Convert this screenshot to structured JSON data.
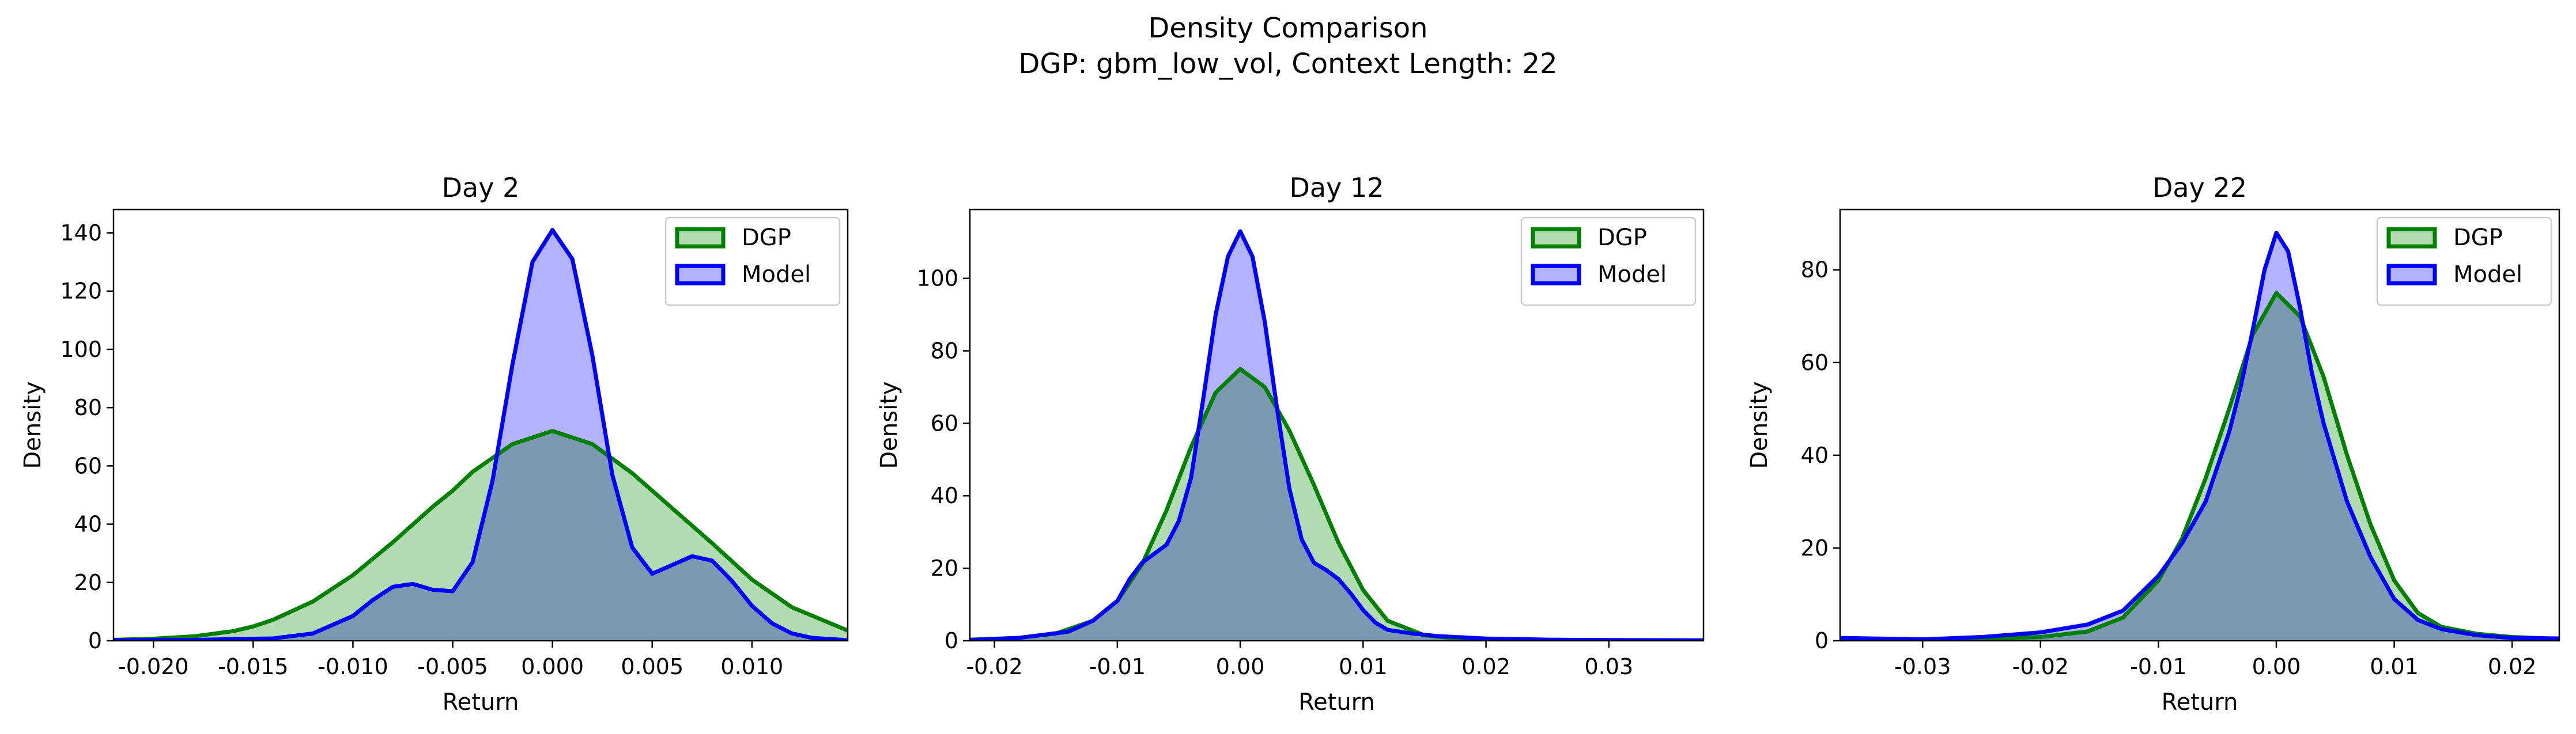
{
  "figure": {
    "title_line1": "Density Comparison",
    "title_line2": "DGP: gbm_low_vol, Context Length: 22"
  },
  "colors": {
    "dgp_line": "#008000",
    "dgp_fill": "#b2dbb2",
    "model_line": "#0000ff",
    "model_fill": "#b2b2ff",
    "overlap_fill": "#7c97c8"
  },
  "chart_data": [
    {
      "type": "area",
      "title": "Day 2",
      "xlabel": "Return",
      "ylabel": "Density",
      "xlim": [
        -0.022,
        0.0148
      ],
      "ylim": [
        0,
        148
      ],
      "xticks": [
        -0.02,
        -0.015,
        -0.01,
        -0.005,
        0.0,
        0.005,
        0.01
      ],
      "xtick_labels": [
        "-0.020",
        "-0.015",
        "-0.010",
        "-0.005",
        "0.000",
        "0.005",
        "0.010"
      ],
      "yticks": [
        0,
        20,
        40,
        60,
        80,
        100,
        120,
        140
      ],
      "legend": "top-right",
      "series": [
        {
          "name": "DGP",
          "x": [
            -0.022,
            -0.02,
            -0.018,
            -0.016,
            -0.015,
            -0.014,
            -0.012,
            -0.01,
            -0.008,
            -0.006,
            -0.005,
            -0.004,
            -0.002,
            0.0,
            0.002,
            0.004,
            0.005,
            0.006,
            0.008,
            0.01,
            0.012,
            0.0148
          ],
          "y": [
            0.3,
            0.7,
            1.5,
            3.3,
            4.9,
            7.2,
            13.5,
            22.5,
            33.8,
            46.0,
            51.5,
            58.0,
            67.5,
            72.0,
            67.5,
            57.5,
            51.5,
            45.5,
            33.5,
            21.0,
            11.5,
            3.5
          ]
        },
        {
          "name": "Model",
          "x": [
            -0.022,
            -0.018,
            -0.014,
            -0.012,
            -0.01,
            -0.009,
            -0.008,
            -0.007,
            -0.006,
            -0.005,
            -0.004,
            -0.003,
            -0.002,
            -0.001,
            0.0,
            0.001,
            0.002,
            0.003,
            0.004,
            0.005,
            0.006,
            0.007,
            0.008,
            0.009,
            0.01,
            0.011,
            0.012,
            0.013,
            0.0148
          ],
          "y": [
            0.2,
            0.3,
            0.8,
            2.5,
            8.5,
            14.0,
            18.5,
            19.5,
            17.5,
            17.0,
            27.0,
            55.0,
            95.0,
            130.0,
            141.0,
            131.0,
            98.0,
            57.0,
            32.0,
            23.0,
            26.0,
            29.0,
            27.5,
            20.5,
            12.0,
            6.0,
            2.5,
            1.0,
            0.2
          ]
        }
      ]
    },
    {
      "type": "area",
      "title": "Day 12",
      "xlabel": "Return",
      "ylabel": "Density",
      "xlim": [
        -0.022,
        0.0377
      ],
      "ylim": [
        0,
        119
      ],
      "xticks": [
        -0.02,
        -0.01,
        0.0,
        0.01,
        0.02,
        0.03
      ],
      "xtick_labels": [
        "-0.02",
        "-0.01",
        "0.00",
        "0.01",
        "0.02",
        "0.03"
      ],
      "yticks": [
        0,
        20,
        40,
        60,
        80,
        100
      ],
      "legend": "top-right",
      "series": [
        {
          "name": "DGP",
          "x": [
            -0.022,
            -0.018,
            -0.015,
            -0.012,
            -0.01,
            -0.008,
            -0.006,
            -0.004,
            -0.002,
            0.0,
            0.002,
            0.004,
            0.006,
            0.008,
            0.01,
            0.012,
            0.015,
            0.018,
            0.022,
            0.0377
          ],
          "y": [
            0.3,
            0.8,
            2.0,
            5.5,
            11.0,
            21.0,
            36.0,
            53.5,
            68.5,
            75.0,
            70.0,
            58.0,
            43.0,
            27.0,
            14.0,
            5.5,
            1.5,
            0.5,
            0.2,
            0.1
          ]
        },
        {
          "name": "Model",
          "x": [
            -0.022,
            -0.018,
            -0.014,
            -0.012,
            -0.01,
            -0.009,
            -0.008,
            -0.007,
            -0.006,
            -0.005,
            -0.004,
            -0.003,
            -0.002,
            -0.001,
            0.0,
            0.001,
            0.002,
            0.003,
            0.004,
            0.005,
            0.006,
            0.007,
            0.008,
            0.009,
            0.01,
            0.011,
            0.012,
            0.014,
            0.016,
            0.02,
            0.025,
            0.03,
            0.0377
          ],
          "y": [
            0.2,
            0.8,
            2.5,
            5.5,
            11.0,
            17.0,
            21.5,
            24.0,
            26.5,
            33.0,
            45.0,
            67.0,
            90.0,
            106.0,
            113.0,
            106.0,
            88.0,
            64.0,
            42.0,
            28.0,
            21.5,
            19.5,
            17.0,
            13.0,
            8.5,
            5.0,
            3.0,
            2.0,
            1.3,
            0.6,
            0.3,
            0.2,
            0.1
          ]
        }
      ]
    },
    {
      "type": "area",
      "title": "Day 22",
      "xlabel": "Return",
      "ylabel": "Density",
      "xlim": [
        -0.037,
        0.024
      ],
      "ylim": [
        0,
        93
      ],
      "xticks": [
        -0.03,
        -0.02,
        -0.01,
        0.0,
        0.01,
        0.02
      ],
      "xtick_labels": [
        "-0.03",
        "-0.02",
        "-0.01",
        "0.00",
        "0.01",
        "0.02"
      ],
      "yticks": [
        0,
        20,
        40,
        60,
        80
      ],
      "legend": "top-right",
      "series": [
        {
          "name": "DGP",
          "x": [
            -0.037,
            -0.03,
            -0.025,
            -0.02,
            -0.016,
            -0.013,
            -0.01,
            -0.008,
            -0.006,
            -0.004,
            -0.002,
            0.0,
            0.002,
            0.004,
            0.006,
            0.008,
            0.01,
            0.012,
            0.014,
            0.017,
            0.02,
            0.024
          ],
          "y": [
            0.1,
            0.2,
            0.4,
            0.8,
            2.0,
            5.0,
            13.0,
            22.0,
            35.0,
            50.0,
            66.0,
            75.0,
            70.0,
            57.0,
            40.0,
            25.0,
            13.0,
            6.0,
            3.0,
            1.5,
            0.8,
            0.4
          ]
        },
        {
          "name": "Model",
          "x": [
            -0.037,
            -0.03,
            -0.025,
            -0.02,
            -0.016,
            -0.013,
            -0.01,
            -0.008,
            -0.006,
            -0.004,
            -0.003,
            -0.002,
            -0.001,
            0.0,
            0.001,
            0.002,
            0.003,
            0.004,
            0.006,
            0.008,
            0.01,
            0.012,
            0.014,
            0.017,
            0.02,
            0.024
          ],
          "y": [
            0.6,
            0.3,
            0.8,
            1.8,
            3.5,
            6.5,
            14.0,
            21.0,
            30.0,
            45.0,
            55.0,
            67.0,
            80.0,
            88.0,
            84.0,
            72.0,
            58.0,
            47.0,
            30.0,
            18.0,
            9.0,
            4.5,
            2.5,
            1.2,
            0.6,
            0.5
          ]
        }
      ]
    }
  ]
}
